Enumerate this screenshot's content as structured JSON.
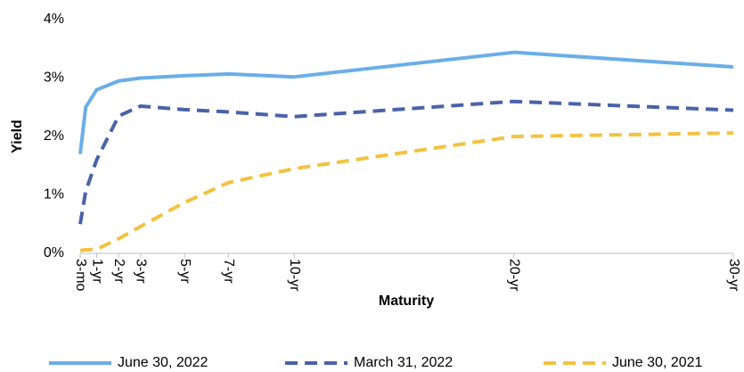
{
  "chart_data": {
    "type": "line",
    "x_label": "Maturity",
    "y_label": "Yield",
    "x": [
      0.25,
      0.5,
      1,
      2,
      3,
      5,
      7,
      10,
      20,
      30
    ],
    "series": [
      {
        "name": "June 30, 2022",
        "color": "#6aaee8",
        "dash": "solid",
        "values": [
          1.7,
          2.5,
          2.8,
          2.95,
          3.0,
          3.04,
          3.07,
          3.02,
          3.44,
          3.19
        ]
      },
      {
        "name": "March 31, 2022",
        "color": "#4a62a8",
        "dash": "dashed",
        "values": [
          0.5,
          1.06,
          1.6,
          2.35,
          2.52,
          2.46,
          2.42,
          2.34,
          2.6,
          2.45
        ]
      },
      {
        "name": "June 30, 2021",
        "color": "#f3c242",
        "dash": "dashed",
        "values": [
          0.05,
          0.06,
          0.07,
          0.25,
          0.46,
          0.87,
          1.21,
          1.45,
          2.0,
          2.06
        ]
      }
    ],
    "xlim": [
      0.25,
      30
    ],
    "xticks": [
      {
        "value": 0.25,
        "label": "3-mo"
      },
      {
        "value": 1,
        "label": "1-yr"
      },
      {
        "value": 2,
        "label": "2-yr"
      },
      {
        "value": 3,
        "label": "3-yr"
      },
      {
        "value": 5,
        "label": "5-yr"
      },
      {
        "value": 7,
        "label": "7-yr"
      },
      {
        "value": 10,
        "label": "10-yr"
      },
      {
        "value": 20,
        "label": "20-yr"
      },
      {
        "value": 30,
        "label": "30-yr"
      }
    ],
    "ylim": [
      0,
      4
    ],
    "yticks": [
      {
        "value": 0,
        "label": "0%"
      },
      {
        "value": 1,
        "label": "1%"
      },
      {
        "value": 2,
        "label": "2%"
      },
      {
        "value": 3,
        "label": "3%"
      },
      {
        "value": 4,
        "label": "4%"
      }
    ],
    "grid": false,
    "legend": "bottom"
  }
}
